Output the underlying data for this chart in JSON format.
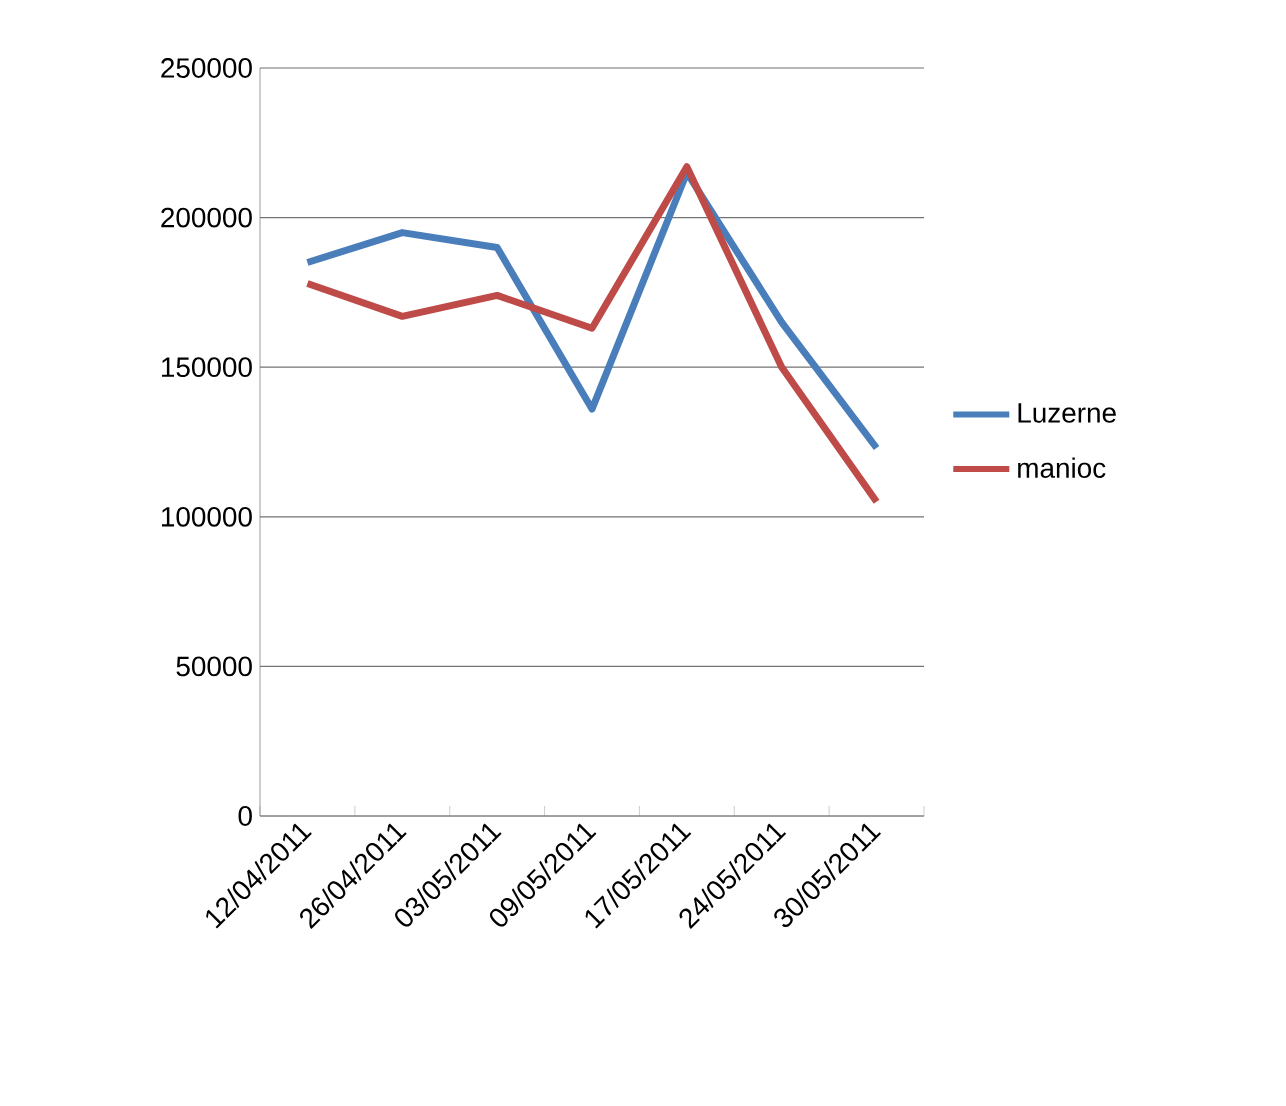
{
  "chart_data": {
    "type": "line",
    "categories": [
      "12/04/2011",
      "26/04/2011",
      "03/05/2011",
      "09/05/2011",
      "17/05/2011",
      "24/05/2011",
      "30/05/2011"
    ],
    "series": [
      {
        "name": "Luzerne",
        "color": "#4a7ebb",
        "values": [
          185000,
          195000,
          190000,
          136000,
          215000,
          165000,
          123000
        ]
      },
      {
        "name": "manioc",
        "color": "#be4b48",
        "values": [
          178000,
          167000,
          174000,
          163000,
          217000,
          150000,
          105000
        ]
      }
    ],
    "ylim": [
      0,
      250000
    ],
    "yticks": [
      0,
      50000,
      100000,
      150000,
      200000,
      250000
    ],
    "grid": "y",
    "legend": "right",
    "marker": "none",
    "line_style": "solid"
  }
}
